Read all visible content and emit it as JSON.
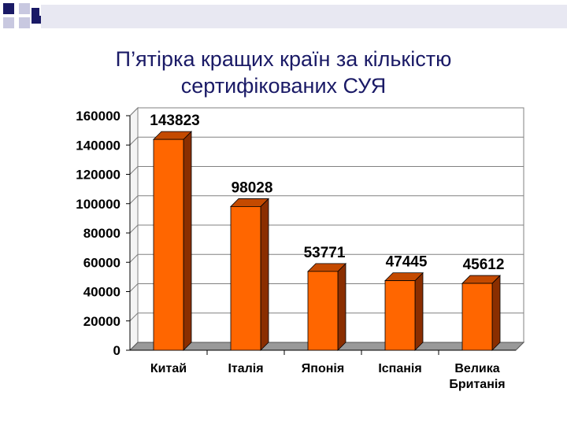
{
  "slide": {
    "title_line1": "П’ятірка кращих країн за кількістю",
    "title_line2": "сертифікованих СУЯ"
  },
  "colors": {
    "bar_front": "#ff6600",
    "bar_side": "#8a2e00",
    "bar_top": "#c44a00",
    "title": "#1a1a66",
    "decor_dark": "#1a1a66",
    "decor_light": "#c8c8e0"
  },
  "chart_data": {
    "type": "bar",
    "style": "3d-column",
    "categories": [
      "Китай",
      "Італія",
      "Японія",
      "Іспанія",
      "Велика Британія"
    ],
    "category_lines": [
      [
        "Китай"
      ],
      [
        "Італія"
      ],
      [
        "Японія"
      ],
      [
        "Іспанія"
      ],
      [
        "Велика",
        "Британія"
      ]
    ],
    "values": [
      143823,
      98028,
      53771,
      47445,
      45612
    ],
    "data_labels": [
      "143823",
      "98028",
      "53771",
      "47445",
      "45612"
    ],
    "ylim": [
      0,
      160000
    ],
    "y_ticks": [
      0,
      20000,
      40000,
      60000,
      80000,
      100000,
      120000,
      140000,
      160000
    ],
    "y_tick_labels": [
      "0",
      "20000",
      "40000",
      "60000",
      "80000",
      "100000",
      "120000",
      "140000",
      "160000"
    ],
    "grid": true,
    "legend": "none",
    "xlabel": "",
    "ylabel": ""
  }
}
